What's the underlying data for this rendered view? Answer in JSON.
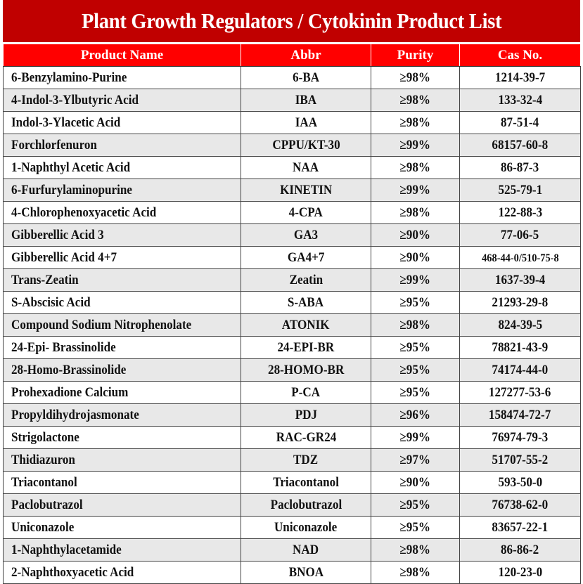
{
  "title": "Plant Growth Regulators / Cytokinin Product List",
  "columns": [
    "Product Name",
    "Abbr",
    "Purity",
    "Cas No."
  ],
  "colors": {
    "title_bg": "#c00000",
    "header_bg": "#ff0000",
    "alt_row": "#e8e8e8"
  },
  "rows": [
    {
      "name": "6-Benzylamino-Purine",
      "abbr": "6-BA",
      "purity": "≥98%",
      "cas": "1214-39-7"
    },
    {
      "name": "4-Indol-3-Ylbutyric Acid",
      "abbr": "IBA",
      "purity": "≥98%",
      "cas": "133-32-4"
    },
    {
      "name": "Indol-3-Ylacetic Acid",
      "abbr": "IAA",
      "purity": "≥98%",
      "cas": "87-51-4"
    },
    {
      "name": "Forchlorfenuron",
      "abbr": "CPPU/KT-30",
      "purity": "≥99%",
      "cas": "68157-60-8"
    },
    {
      "name": "1-Naphthyl Acetic Acid",
      "abbr": "NAA",
      "purity": "≥98%",
      "cas": "86-87-3"
    },
    {
      "name": "6-Furfurylaminopurine",
      "abbr": "KINETIN",
      "purity": "≥99%",
      "cas": "525-79-1"
    },
    {
      "name": "4-Chlorophenoxyacetic Acid",
      "abbr": "4-CPA",
      "purity": "≥98%",
      "cas": "122-88-3"
    },
    {
      "name": "Gibberellic Acid 3",
      "abbr": "GA3",
      "purity": "≥90%",
      "cas": "77-06-5"
    },
    {
      "name": "Gibberellic Acid 4+7",
      "abbr": "GA4+7",
      "purity": "≥90%",
      "cas": "468-44-0/510-75-8"
    },
    {
      "name": "Trans-Zeatin",
      "abbr": "Zeatin",
      "purity": "≥99%",
      "cas": "1637-39-4"
    },
    {
      "name": "S-Abscisic Acid",
      "abbr": "S-ABA",
      "purity": "≥95%",
      "cas": "21293-29-8"
    },
    {
      "name": "Compound Sodium Nitrophenolate",
      "abbr": "ATONIK",
      "purity": "≥98%",
      "cas": "824-39-5"
    },
    {
      "name": "24-Epi- Brassinolide",
      "abbr": "24-EPI-BR",
      "purity": "≥95%",
      "cas": "78821-43-9"
    },
    {
      "name": "28-Homo-Brassinolide",
      "abbr": "28-HOMO-BR",
      "purity": "≥95%",
      "cas": "74174-44-0"
    },
    {
      "name": "Prohexadione Calcium",
      "abbr": "P-CA",
      "purity": "≥95%",
      "cas": "127277-53-6"
    },
    {
      "name": "Propyldihydrojasmonate",
      "abbr": "PDJ",
      "purity": "≥96%",
      "cas": "158474-72-7"
    },
    {
      "name": "Strigolactone",
      "abbr": "RAC-GR24",
      "purity": "≥99%",
      "cas": "76974-79-3"
    },
    {
      "name": "Thidiazuron",
      "abbr": "TDZ",
      "purity": "≥97%",
      "cas": "51707-55-2"
    },
    {
      "name": "Triacontanol",
      "abbr": "Triacontanol",
      "purity": "≥90%",
      "cas": "593-50-0"
    },
    {
      "name": "Paclobutrazol",
      "abbr": "Paclobutrazol",
      "purity": "≥95%",
      "cas": "76738-62-0"
    },
    {
      "name": "Uniconazole",
      "abbr": "Uniconazole",
      "purity": "≥95%",
      "cas": "83657-22-1"
    },
    {
      "name": "1-Naphthylacetamide",
      "abbr": "NAD",
      "purity": "≥98%",
      "cas": "86-86-2"
    },
    {
      "name": "2-Naphthoxyacetic Acid",
      "abbr": "BNOA",
      "purity": "≥98%",
      "cas": "120-23-0"
    }
  ]
}
